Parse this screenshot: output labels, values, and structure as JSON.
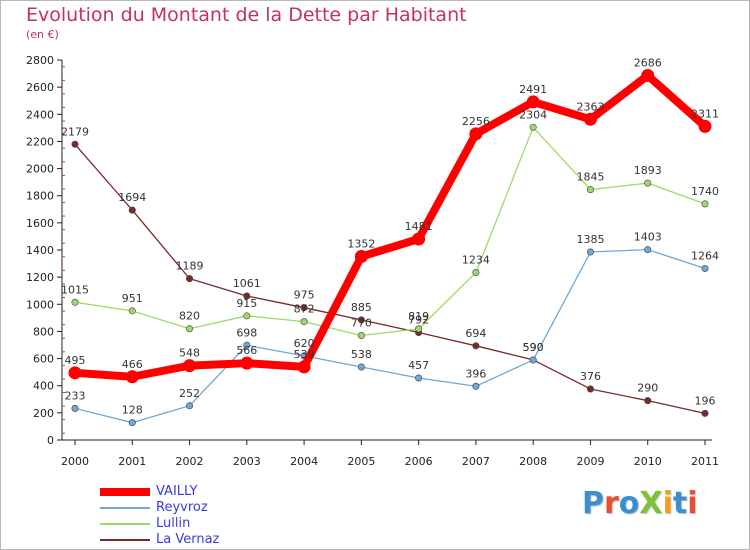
{
  "title": "Evolution du Montant de la Dette par Habitant",
  "subtitle": "(en €)",
  "logo": {
    "text": "ProXiti",
    "letters": [
      {
        "ch": "P",
        "color": "#3b8fd1"
      },
      {
        "ch": "r",
        "color": "#e94f2f"
      },
      {
        "ch": "o",
        "color": "#3b8fd1"
      },
      {
        "ch": "X",
        "color": "#7fbf3a"
      },
      {
        "ch": "i",
        "color": "#f2a01c"
      },
      {
        "ch": "t",
        "color": "#3b8fd1"
      },
      {
        "ch": "i",
        "color": "#e94f2f"
      }
    ]
  },
  "chart_data": {
    "type": "line",
    "x": [
      "2000",
      "2001",
      "2002",
      "2003",
      "2004",
      "2005",
      "2006",
      "2007",
      "2008",
      "2009",
      "2010",
      "2011"
    ],
    "ylim": [
      0,
      2800
    ],
    "yticks": [
      0,
      200,
      400,
      600,
      800,
      1000,
      1200,
      1400,
      1600,
      1800,
      2000,
      2200,
      2400,
      2600,
      2800
    ],
    "grid": false,
    "legend_position": "bottom-left",
    "series": [
      {
        "name": "VAILLY",
        "color": "#ff0000",
        "values": [
          495,
          466,
          548,
          566,
          539,
          1352,
          1481,
          2256,
          2491,
          2363,
          2686,
          2311
        ],
        "labels": [
          "495",
          "466",
          "548",
          "566",
          "539",
          "1352",
          "1481",
          "2256",
          "2491",
          "2363",
          "2686",
          "2311"
        ]
      },
      {
        "name": "Reyvroz",
        "color": "#6fa8d6",
        "values": [
          233,
          128,
          252,
          698,
          620,
          538,
          457,
          396,
          590,
          1385,
          1403,
          1264
        ],
        "labels": [
          "233",
          "128",
          "252",
          "698",
          "620",
          "538",
          "457",
          "396",
          "590",
          "1385",
          "1403",
          "1264"
        ]
      },
      {
        "name": "Lullin",
        "color": "#9ed86a",
        "values": [
          1015,
          951,
          820,
          915,
          872,
          770,
          819,
          1234,
          2304,
          1845,
          1893,
          1740
        ],
        "labels": [
          "1015",
          "951",
          "820",
          "915",
          "872",
          "770",
          "819",
          "1234",
          "2304",
          "1845",
          "1893",
          "1740"
        ]
      },
      {
        "name": "La Vernaz",
        "color": "#7a2a2a",
        "values": [
          2179,
          1694,
          1189,
          1061,
          975,
          885,
          792,
          694,
          590,
          376,
          290,
          196
        ],
        "labels": [
          "2179",
          "1694",
          "1189",
          "1061",
          "975",
          "885",
          "792",
          "694",
          "590",
          "376",
          "290",
          "196"
        ]
      }
    ]
  }
}
